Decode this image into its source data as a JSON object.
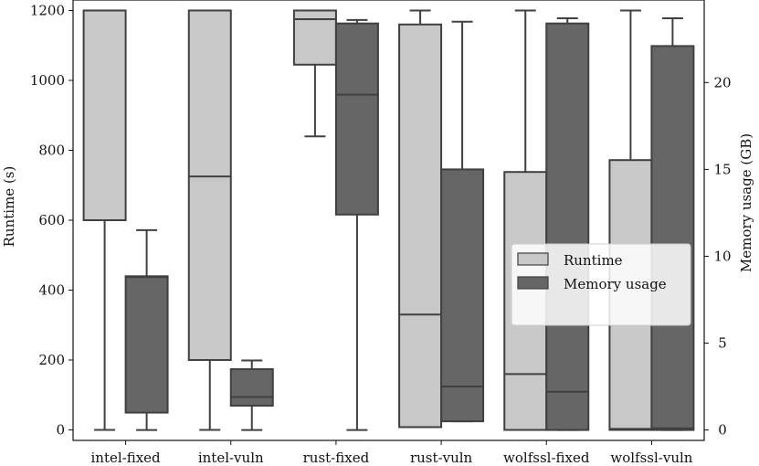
{
  "chart_data": {
    "type": "box",
    "categories": [
      "intel-fixed",
      "intel-vuln",
      "rust-fixed",
      "rust-vuln",
      "wolfssl-fixed",
      "wolfssl-vuln"
    ],
    "y_left": {
      "label": "Runtime (s)",
      "range": [
        -30,
        1230
      ],
      "ticks": [
        0,
        200,
        400,
        600,
        800,
        1000,
        1200
      ]
    },
    "y_right": {
      "label": "Memory usage (GB)",
      "range": [
        -0.6,
        24.75
      ],
      "ticks": [
        0,
        5,
        10,
        15,
        20
      ]
    },
    "series": [
      {
        "name": "Runtime",
        "axis": "left",
        "color": "#c8c8c8",
        "boxes": [
          {
            "whisker_low": 0,
            "q1": 600,
            "median": 1200,
            "q3": 1200,
            "whisker_high": 1200
          },
          {
            "whisker_low": 0,
            "q1": 200,
            "median": 725,
            "q3": 1200,
            "whisker_high": 1200
          },
          {
            "whisker_low": 840,
            "q1": 1045,
            "median": 1175,
            "q3": 1200,
            "whisker_high": 1200
          },
          {
            "whisker_low": 8,
            "q1": 8,
            "median": 330,
            "q3": 1160,
            "whisker_high": 1200
          },
          {
            "whisker_low": 0,
            "q1": 0,
            "median": 160,
            "q3": 738,
            "whisker_high": 1200
          },
          {
            "whisker_low": 0,
            "q1": 0,
            "median": 3,
            "q3": 772,
            "whisker_high": 1200
          }
        ]
      },
      {
        "name": "Memory usage",
        "axis": "right",
        "color": "#666666",
        "boxes": [
          {
            "whisker_low": 0,
            "q1": 1.0,
            "median": 8.8,
            "q3": 8.85,
            "whisker_high": 11.5
          },
          {
            "whisker_low": 0,
            "q1": 1.4,
            "median": 1.9,
            "q3": 3.5,
            "whisker_high": 4.0
          },
          {
            "whisker_low": 0,
            "q1": 12.4,
            "median": 19.3,
            "q3": 23.4,
            "whisker_high": 23.6
          },
          {
            "whisker_low": 0.5,
            "q1": 0.5,
            "median": 2.5,
            "q3": 15.0,
            "whisker_high": 23.5
          },
          {
            "whisker_low": 0,
            "q1": 0,
            "median": 2.2,
            "q3": 23.4,
            "whisker_high": 23.7
          },
          {
            "whisker_low": 0,
            "q1": 0,
            "median": 0.1,
            "q3": 22.1,
            "whisker_high": 23.7
          }
        ]
      }
    ],
    "legend": {
      "position": "center-right",
      "entries": [
        "Runtime",
        "Memory usage"
      ]
    },
    "grid": false
  }
}
